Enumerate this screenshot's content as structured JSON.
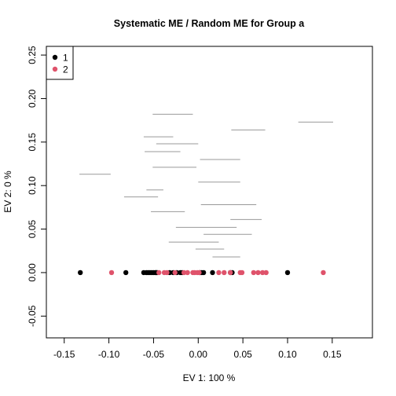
{
  "chart_data": {
    "type": "scatter",
    "title": "Systematic ME / Random ME for Group a",
    "xlabel": "EV 1: 100 %",
    "ylabel": "EV 2: 0 %",
    "xlim": [
      -0.17,
      0.195
    ],
    "ylim": [
      -0.075,
      0.26
    ],
    "x_ticks": [
      -0.15,
      -0.1,
      -0.05,
      0.0,
      0.05,
      0.1,
      0.15
    ],
    "x_tick_labels": [
      "-0.15",
      "-0.10",
      "-0.05",
      "0.00",
      "0.05",
      "0.10",
      "0.15"
    ],
    "y_ticks": [
      -0.05,
      0.0,
      0.05,
      0.1,
      0.15,
      0.2,
      0.25
    ],
    "y_tick_labels": [
      "-0.05",
      "0.00",
      "0.05",
      "0.10",
      "0.15",
      "0.20",
      "0.25"
    ],
    "grid": false,
    "legend": {
      "position": "top-left",
      "entries": [
        {
          "label": "1",
          "color": "#000000"
        },
        {
          "label": "2",
          "color": "#DF536B"
        }
      ]
    },
    "series": [
      {
        "name": "1",
        "color": "#000000",
        "x": [
          -0.132,
          -0.081,
          -0.061,
          -0.058,
          -0.056,
          -0.054,
          -0.052,
          -0.05,
          -0.048,
          -0.047,
          -0.046,
          -0.032,
          -0.028,
          -0.024,
          -0.02,
          -0.018,
          0.002,
          0.004,
          0.006,
          0.016,
          0.036,
          0.038,
          0.1
        ],
        "y": [
          0,
          0,
          0,
          0,
          0,
          0,
          0,
          0,
          0,
          0,
          0,
          0,
          0,
          0,
          0,
          0,
          0,
          0,
          0,
          0,
          0,
          0,
          0
        ]
      },
      {
        "name": "2",
        "color": "#DF536B",
        "x": [
          -0.097,
          -0.044,
          -0.038,
          -0.035,
          -0.026,
          -0.016,
          -0.012,
          -0.006,
          -0.004,
          -0.001,
          0.001,
          0.023,
          0.029,
          0.036,
          0.047,
          0.049,
          0.062,
          0.067,
          0.072,
          0.076,
          0.14
        ],
        "y": [
          0,
          0,
          0,
          0,
          0,
          0,
          0,
          0,
          0,
          0,
          0,
          0,
          0,
          0,
          0,
          0,
          0,
          0,
          0,
          0,
          0
        ]
      }
    ],
    "segments": {
      "color": "#999999",
      "items": [
        {
          "x0": -0.051,
          "x1": -0.006,
          "y": 0.182
        },
        {
          "x0": 0.112,
          "x1": 0.151,
          "y": 0.173
        },
        {
          "x0": 0.037,
          "x1": 0.075,
          "y": 0.164
        },
        {
          "x0": -0.061,
          "x1": -0.028,
          "y": 0.156
        },
        {
          "x0": -0.047,
          "x1": 0.0,
          "y": 0.148
        },
        {
          "x0": -0.06,
          "x1": -0.02,
          "y": 0.139
        },
        {
          "x0": 0.002,
          "x1": 0.047,
          "y": 0.13
        },
        {
          "x0": -0.051,
          "x1": -0.002,
          "y": 0.121
        },
        {
          "x0": -0.133,
          "x1": -0.098,
          "y": 0.113
        },
        {
          "x0": 0.0,
          "x1": 0.047,
          "y": 0.104
        },
        {
          "x0": -0.058,
          "x1": -0.039,
          "y": 0.095
        },
        {
          "x0": -0.083,
          "x1": -0.045,
          "y": 0.087
        },
        {
          "x0": 0.003,
          "x1": 0.065,
          "y": 0.078
        },
        {
          "x0": -0.053,
          "x1": -0.015,
          "y": 0.07
        },
        {
          "x0": 0.036,
          "x1": 0.071,
          "y": 0.061
        },
        {
          "x0": -0.025,
          "x1": 0.043,
          "y": 0.052
        },
        {
          "x0": 0.006,
          "x1": 0.06,
          "y": 0.044
        },
        {
          "x0": -0.033,
          "x1": 0.023,
          "y": 0.035
        },
        {
          "x0": -0.003,
          "x1": 0.029,
          "y": 0.027
        },
        {
          "x0": 0.016,
          "x1": 0.047,
          "y": 0.018
        }
      ]
    }
  }
}
